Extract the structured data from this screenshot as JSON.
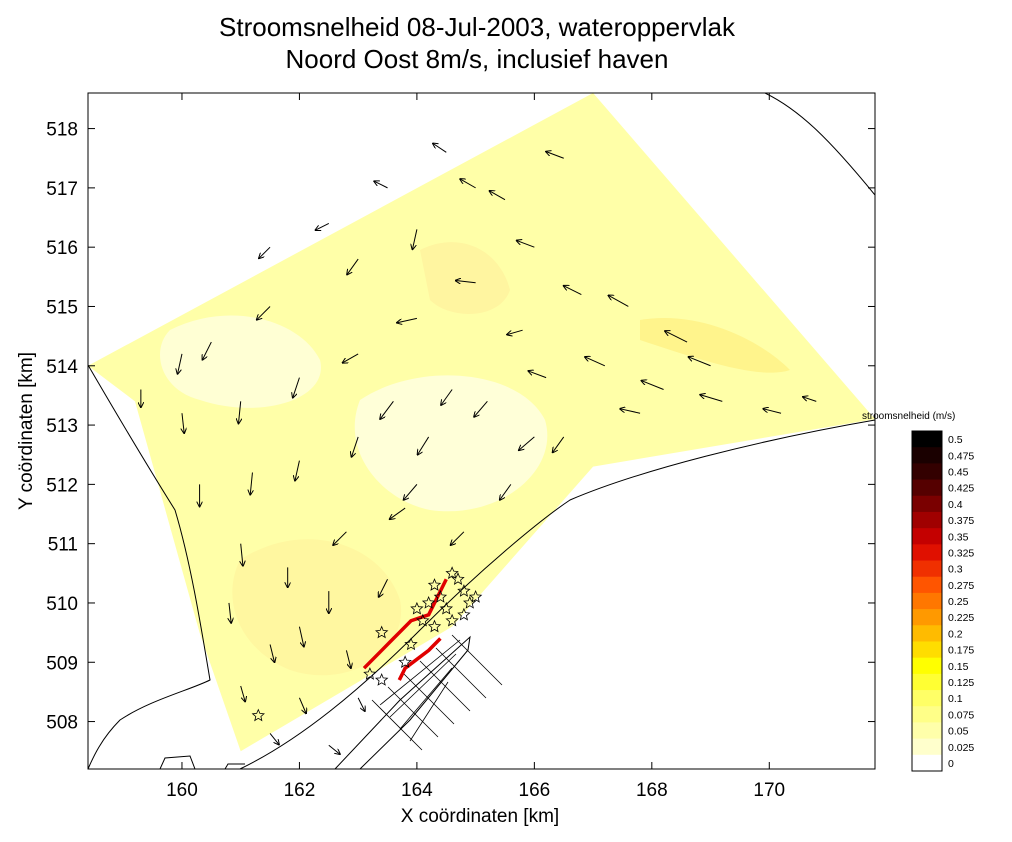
{
  "chart_data": {
    "type": "map",
    "title": [
      "Stroomsnelheid 08-Jul-2003, wateroppervlak",
      "Noord Oost 8m/s, inclusief haven"
    ],
    "xlabel": "X coördinaten [km]",
    "ylabel": "Y coördinaten [km]",
    "xlim": [
      158.4,
      171.8
    ],
    "ylim": [
      507.2,
      518.6
    ],
    "x_ticks": [
      160,
      162,
      164,
      166,
      168,
      170
    ],
    "y_ticks": [
      508,
      509,
      510,
      511,
      512,
      513,
      514,
      515,
      516,
      517,
      518
    ],
    "domain_outline": [
      [
        158.4,
        514.0
      ],
      [
        167.0,
        518.6
      ],
      [
        171.8,
        513.1
      ],
      [
        167.0,
        512.3
      ],
      [
        164.6,
        509.6
      ],
      [
        161.0,
        507.5
      ],
      [
        160.3,
        509.5
      ],
      [
        159.2,
        513.4
      ]
    ],
    "arrow_field": {
      "vectors": [
        {
          "x": 159.3,
          "y": 513.6,
          "u": 0.0,
          "v": -0.08
        },
        {
          "x": 160.0,
          "y": 513.2,
          "u": 0.01,
          "v": -0.09
        },
        {
          "x": 161.0,
          "y": 513.4,
          "u": -0.01,
          "v": -0.1
        },
        {
          "x": 162.0,
          "y": 513.8,
          "u": -0.03,
          "v": -0.09
        },
        {
          "x": 163.0,
          "y": 514.2,
          "u": -0.07,
          "v": -0.04
        },
        {
          "x": 164.0,
          "y": 514.8,
          "u": -0.09,
          "v": -0.02
        },
        {
          "x": 165.0,
          "y": 515.4,
          "u": -0.09,
          "v": 0.01
        },
        {
          "x": 166.0,
          "y": 516.0,
          "u": -0.08,
          "v": 0.03
        },
        {
          "x": 166.5,
          "y": 517.5,
          "u": -0.08,
          "v": 0.03
        },
        {
          "x": 165.0,
          "y": 517.0,
          "u": -0.07,
          "v": 0.04
        },
        {
          "x": 164.0,
          "y": 516.3,
          "u": -0.02,
          "v": -0.09
        },
        {
          "x": 163.0,
          "y": 515.8,
          "u": -0.05,
          "v": -0.07
        },
        {
          "x": 161.5,
          "y": 515.0,
          "u": -0.06,
          "v": -0.06
        },
        {
          "x": 160.5,
          "y": 514.4,
          "u": -0.04,
          "v": -0.08
        },
        {
          "x": 160.3,
          "y": 512.0,
          "u": 0.0,
          "v": -0.1
        },
        {
          "x": 161.0,
          "y": 511.0,
          "u": 0.01,
          "v": -0.1
        },
        {
          "x": 160.8,
          "y": 510.0,
          "u": 0.01,
          "v": -0.09
        },
        {
          "x": 161.5,
          "y": 509.3,
          "u": 0.02,
          "v": -0.08
        },
        {
          "x": 162.0,
          "y": 508.4,
          "u": 0.03,
          "v": -0.07
        },
        {
          "x": 162.0,
          "y": 512.4,
          "u": -0.02,
          "v": -0.09
        },
        {
          "x": 163.0,
          "y": 512.8,
          "u": -0.03,
          "v": -0.09
        },
        {
          "x": 164.2,
          "y": 512.8,
          "u": -0.05,
          "v": -0.08
        },
        {
          "x": 165.2,
          "y": 513.4,
          "u": -0.06,
          "v": -0.07
        },
        {
          "x": 166.2,
          "y": 513.8,
          "u": -0.08,
          "v": 0.03
        },
        {
          "x": 167.2,
          "y": 514.0,
          "u": -0.09,
          "v": 0.04
        },
        {
          "x": 168.2,
          "y": 513.6,
          "u": -0.1,
          "v": 0.04
        },
        {
          "x": 169.2,
          "y": 513.4,
          "u": -0.1,
          "v": 0.03
        },
        {
          "x": 170.2,
          "y": 513.2,
          "u": -0.08,
          "v": 0.02
        },
        {
          "x": 168.6,
          "y": 514.4,
          "u": -0.1,
          "v": 0.05
        },
        {
          "x": 167.6,
          "y": 515.0,
          "u": -0.09,
          "v": 0.05
        },
        {
          "x": 166.5,
          "y": 512.8,
          "u": -0.05,
          "v": -0.07
        },
        {
          "x": 165.6,
          "y": 512.0,
          "u": -0.05,
          "v": -0.07
        },
        {
          "x": 164.8,
          "y": 511.2,
          "u": -0.06,
          "v": -0.06
        },
        {
          "x": 163.8,
          "y": 511.6,
          "u": -0.07,
          "v": -0.05
        },
        {
          "x": 162.8,
          "y": 511.2,
          "u": -0.06,
          "v": -0.06
        },
        {
          "x": 162.5,
          "y": 510.2,
          "u": 0.0,
          "v": -0.1
        },
        {
          "x": 163.5,
          "y": 510.4,
          "u": -0.04,
          "v": -0.08
        },
        {
          "x": 162.8,
          "y": 509.2,
          "u": 0.02,
          "v": -0.08
        },
        {
          "x": 163.0,
          "y": 508.4,
          "u": 0.03,
          "v": -0.06
        },
        {
          "x": 161.5,
          "y": 507.8,
          "u": 0.04,
          "v": -0.05
        },
        {
          "x": 162.5,
          "y": 507.6,
          "u": 0.05,
          "v": -0.04
        },
        {
          "x": 165.5,
          "y": 516.8,
          "u": -0.07,
          "v": 0.04
        },
        {
          "x": 164.5,
          "y": 517.6,
          "u": -0.06,
          "v": 0.04
        },
        {
          "x": 163.5,
          "y": 517.0,
          "u": -0.06,
          "v": 0.03
        },
        {
          "x": 162.5,
          "y": 516.4,
          "u": -0.06,
          "v": -0.03
        },
        {
          "x": 161.5,
          "y": 516.0,
          "u": -0.05,
          "v": -0.05
        },
        {
          "x": 166.8,
          "y": 515.2,
          "u": -0.08,
          "v": 0.04
        },
        {
          "x": 165.8,
          "y": 514.6,
          "u": -0.07,
          "v": -0.02
        },
        {
          "x": 164.6,
          "y": 513.6,
          "u": -0.05,
          "v": -0.07
        },
        {
          "x": 163.6,
          "y": 513.4,
          "u": -0.06,
          "v": -0.08
        },
        {
          "x": 161.2,
          "y": 512.2,
          "u": -0.01,
          "v": -0.1
        },
        {
          "x": 161.8,
          "y": 510.6,
          "u": 0.0,
          "v": -0.09
        },
        {
          "x": 162.0,
          "y": 509.6,
          "u": 0.02,
          "v": -0.09
        },
        {
          "x": 161.0,
          "y": 508.6,
          "u": 0.02,
          "v": -0.07
        },
        {
          "x": 164.0,
          "y": 512.0,
          "u": -0.06,
          "v": -0.07
        },
        {
          "x": 166.0,
          "y": 512.8,
          "u": -0.07,
          "v": -0.06
        },
        {
          "x": 167.8,
          "y": 513.2,
          "u": -0.09,
          "v": 0.02
        },
        {
          "x": 169.0,
          "y": 514.0,
          "u": -0.1,
          "v": 0.04
        },
        {
          "x": 170.8,
          "y": 513.4,
          "u": -0.06,
          "v": 0.02
        },
        {
          "x": 160.0,
          "y": 514.2,
          "u": -0.02,
          "v": -0.09
        }
      ]
    },
    "scale_stations": [
      [
        163.4,
        509.5
      ],
      [
        163.2,
        508.8
      ],
      [
        163.4,
        508.7
      ],
      [
        163.8,
        509.0
      ],
      [
        163.9,
        509.3
      ],
      [
        164.0,
        509.9
      ],
      [
        164.2,
        510.0
      ],
      [
        164.4,
        510.1
      ],
      [
        164.5,
        509.9
      ],
      [
        164.6,
        510.5
      ],
      [
        164.7,
        510.4
      ],
      [
        164.8,
        510.2
      ],
      [
        164.9,
        510.0
      ],
      [
        165.0,
        510.1
      ],
      [
        164.3,
        509.6
      ],
      [
        164.6,
        509.7
      ],
      [
        164.8,
        509.8
      ],
      [
        161.3,
        508.1
      ],
      [
        164.1,
        509.7
      ],
      [
        164.3,
        510.3
      ]
    ],
    "red_track": [
      [
        163.1,
        508.9
      ],
      [
        163.6,
        509.4
      ],
      [
        163.9,
        509.7
      ],
      [
        164.2,
        509.8
      ],
      [
        164.4,
        510.2
      ],
      [
        164.5,
        510.4
      ]
    ],
    "red_track_2": [
      [
        163.7,
        508.7
      ],
      [
        163.8,
        508.9
      ],
      [
        164.2,
        509.2
      ],
      [
        164.4,
        509.4
      ]
    ],
    "colorbar": {
      "title": "stroomsnelheid (m/s)",
      "labels": [
        "0.5",
        "0.475",
        "0.45",
        "0.425",
        "0.4",
        "0.375",
        "0.35",
        "0.325",
        "0.3",
        "0.275",
        "0.25",
        "0.225",
        "0.2",
        "0.175",
        "0.15",
        "0.125",
        "0.1",
        "0.075",
        "0.05",
        "0.025",
        "0"
      ],
      "colors": [
        "#000000",
        "#1a0000",
        "#330000",
        "#550000",
        "#7a0000",
        "#a00000",
        "#c40000",
        "#e01000",
        "#f03000",
        "#ff5500",
        "#ff7700",
        "#ff9900",
        "#ffbb00",
        "#ffdd00",
        "#ffff00",
        "#ffff33",
        "#ffff66",
        "#ffff88",
        "#ffffaa",
        "#ffffcc",
        "#ffffff"
      ]
    },
    "grid": false
  }
}
